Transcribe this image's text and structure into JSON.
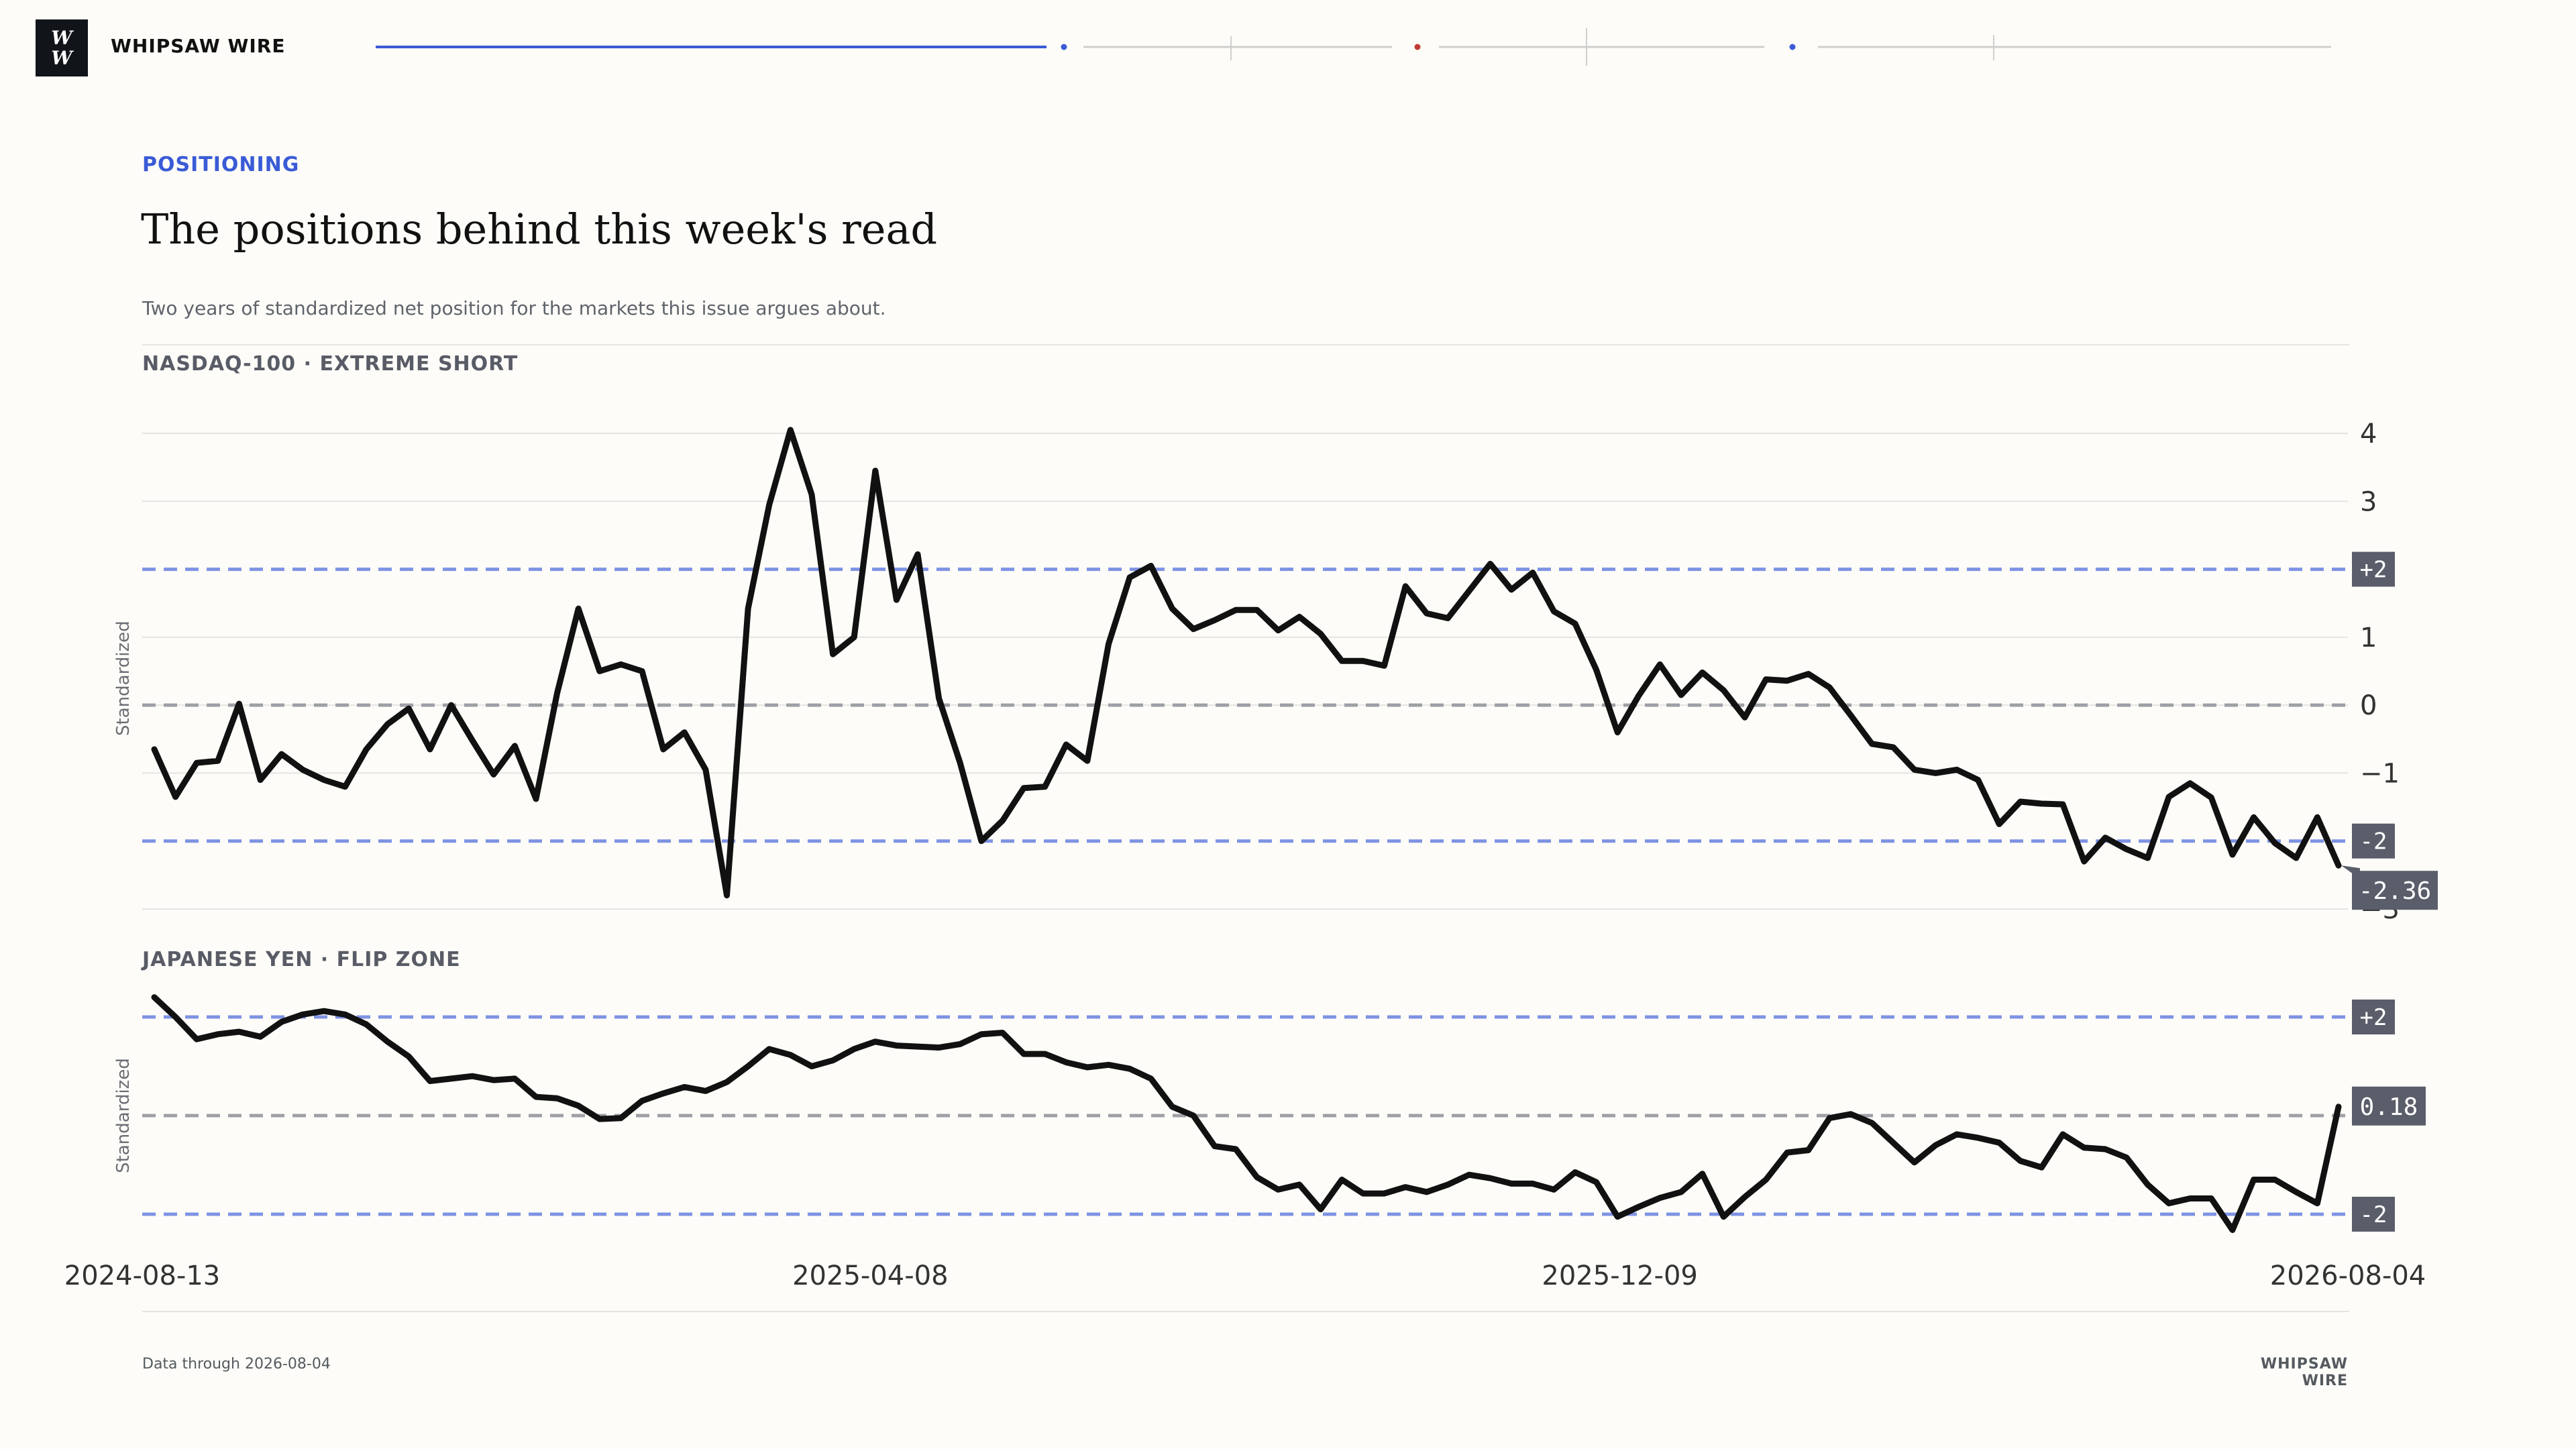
{
  "brand": {
    "logo_line1": "W",
    "logo_line2": "W",
    "name": "WHIPSAW WIRE"
  },
  "header": {
    "kicker": "POSITIONING",
    "title": "The positions behind this week's read",
    "dek": "Two years of standardized net position for the markets this issue argues about."
  },
  "footer": {
    "left": "Data through 2026-08-04",
    "right": "WHIPSAW WIRE"
  },
  "colors": {
    "accent": "#3a5bd6",
    "threshold_line": "#7e93e3",
    "zero_line": "#9ea0a6",
    "series": "#111111",
    "badge": "#5a5e6a",
    "progress_dot_red": "#c23b32"
  },
  "chart_data": [
    {
      "type": "line",
      "title": "NASDAQ-100 · EXTREME SHORT",
      "ylabel": "Standardized",
      "ylim": [
        -3,
        4
      ],
      "yticks": [
        4,
        3,
        1,
        0,
        -1,
        -3
      ],
      "ytick_labels": [
        "4",
        "3",
        "1",
        "0",
        "−1",
        "−3"
      ],
      "grid": true,
      "x_start": "2024-08-13",
      "x_end": "2026-08-04",
      "thresholds": [
        {
          "value": 2,
          "label": "+2",
          "style": "threshold"
        },
        {
          "value": 0,
          "label": "",
          "style": "zero"
        },
        {
          "value": -2,
          "label": "-2",
          "style": "threshold"
        }
      ],
      "last_value_label": "-2.36",
      "series": [
        {
          "values": [
            -0.65,
            -1.35,
            -0.85,
            -0.82,
            0.02,
            -1.1,
            -0.72,
            -0.95,
            -1.1,
            -1.2,
            -0.65,
            -0.28,
            -0.05,
            -0.65,
            0.0,
            -0.52,
            -1.02,
            -0.6,
            -1.38,
            0.18,
            1.42,
            0.5,
            0.6,
            0.5,
            -0.65,
            -0.4,
            -0.95,
            -2.8,
            1.42,
            2.95,
            4.05,
            3.1,
            0.75,
            1.0,
            3.45,
            1.55,
            2.22,
            0.1,
            -0.85,
            -2.0,
            -1.7,
            -1.22,
            -1.2,
            -0.58,
            -0.82,
            0.9,
            1.88,
            2.05,
            1.42,
            1.12,
            1.25,
            1.4,
            1.4,
            1.1,
            1.3,
            1.05,
            0.65,
            0.65,
            0.58,
            1.75,
            1.35,
            1.28,
            1.68,
            2.08,
            1.7,
            1.95,
            1.38,
            1.2,
            0.52,
            -0.4,
            0.14,
            0.6,
            0.15,
            0.48,
            0.22,
            -0.18,
            0.38,
            0.36,
            0.46,
            0.26,
            -0.15,
            -0.57,
            -0.62,
            -0.95,
            -1.0,
            -0.95,
            -1.1,
            -1.75,
            -1.42,
            -1.45,
            -1.46,
            -2.3,
            -1.95,
            -2.12,
            -2.25,
            -1.35,
            -1.15,
            -1.36,
            -2.2,
            -1.65,
            -2.03,
            -2.25,
            -1.65,
            -2.36
          ]
        }
      ]
    },
    {
      "type": "line",
      "title": "JAPANESE YEN · FLIP ZONE",
      "ylabel": "Standardized",
      "ylim": [
        -2.3,
        2.4
      ],
      "grid": false,
      "x_start": "2024-08-13",
      "x_end": "2026-08-04",
      "xtick_labels": [
        "2024-08-13",
        "2025-04-08",
        "2025-12-09",
        "2026-08-04"
      ],
      "thresholds": [
        {
          "value": 2,
          "label": "+2",
          "style": "threshold"
        },
        {
          "value": 0,
          "label": "",
          "style": "zero"
        },
        {
          "value": -2,
          "label": "-2",
          "style": "threshold"
        }
      ],
      "last_value_label": "0.18",
      "series": [
        {
          "values": [
            2.4,
            2.0,
            1.55,
            1.65,
            1.7,
            1.6,
            1.9,
            2.05,
            2.12,
            2.05,
            1.85,
            1.5,
            1.2,
            0.7,
            0.75,
            0.8,
            0.72,
            0.75,
            0.38,
            0.35,
            0.2,
            -0.07,
            -0.05,
            0.3,
            0.45,
            0.58,
            0.5,
            0.68,
            1.0,
            1.35,
            1.23,
            1.0,
            1.12,
            1.35,
            1.5,
            1.42,
            1.4,
            1.38,
            1.45,
            1.65,
            1.68,
            1.25,
            1.25,
            1.08,
            0.98,
            1.03,
            0.95,
            0.75,
            0.18,
            0.0,
            -0.62,
            -0.68,
            -1.25,
            -1.5,
            -1.4,
            -1.9,
            -1.3,
            -1.58,
            -1.58,
            -1.45,
            -1.55,
            -1.4,
            -1.2,
            -1.27,
            -1.38,
            -1.38,
            -1.5,
            -1.15,
            -1.35,
            -2.05,
            -1.85,
            -1.67,
            -1.55,
            -1.18,
            -2.05,
            -1.65,
            -1.3,
            -0.75,
            -0.7,
            -0.05,
            0.03,
            -0.15,
            -0.55,
            -0.95,
            -0.6,
            -0.38,
            -0.45,
            -0.55,
            -0.92,
            -1.05,
            -0.38,
            -0.65,
            -0.68,
            -0.85,
            -1.4,
            -1.78,
            -1.68,
            -1.68,
            -2.32,
            -1.3,
            -1.3,
            -1.55,
            -1.78,
            0.18
          ]
        }
      ]
    }
  ]
}
